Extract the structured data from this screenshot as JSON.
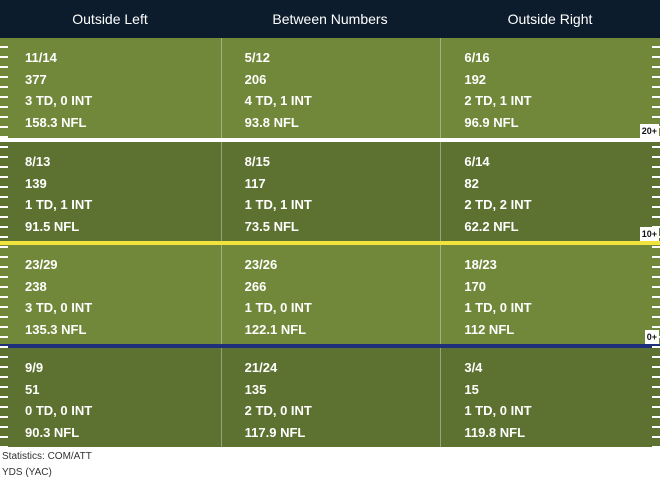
{
  "header": {
    "columns": [
      "Outside Left",
      "Between Numbers",
      "Outside Right"
    ]
  },
  "zones": [
    {
      "label": "20+",
      "cells": [
        [
          "11/14",
          "377",
          "3 TD, 0 INT",
          "158.3 NFL"
        ],
        [
          "5/12",
          "206",
          "4 TD, 1 INT",
          "93.8 NFL"
        ],
        [
          "6/16",
          "192",
          "2 TD, 1 INT",
          "96.9 NFL"
        ]
      ]
    },
    {
      "label": "10+",
      "cells": [
        [
          "8/13",
          "139",
          "1 TD, 1 INT",
          "91.5 NFL"
        ],
        [
          "8/15",
          "117",
          "1 TD, 1 INT",
          "73.5 NFL"
        ],
        [
          "6/14",
          "82",
          "2 TD, 2 INT",
          "62.2 NFL"
        ]
      ]
    },
    {
      "label": "0+",
      "cells": [
        [
          "23/29",
          "238",
          "3 TD, 0 INT",
          "135.3 NFL"
        ],
        [
          "23/26",
          "266",
          "1 TD, 0 INT",
          "122.1 NFL"
        ],
        [
          "18/23",
          "170",
          "1 TD, 0 INT",
          "112 NFL"
        ]
      ]
    },
    {
      "label": "",
      "cells": [
        [
          "9/9",
          "51",
          "0 TD, 0 INT",
          "90.3 NFL"
        ],
        [
          "21/24",
          "135",
          "2 TD, 0 INT",
          "117.9 NFL"
        ],
        [
          "3/4",
          "15",
          "1 TD, 0 INT",
          "119.8 NFL"
        ]
      ]
    }
  ],
  "footer": {
    "line1": "Statistics: COM/ATT",
    "line2": "YDS (YAC)"
  },
  "colors": {
    "header_bg": "#0c1c2c",
    "turf_light": "#71883a",
    "turf_dark": "#5d7230",
    "line_of_scrimmage": "#1f2f7c",
    "first_down_line": "#f0e33d"
  }
}
